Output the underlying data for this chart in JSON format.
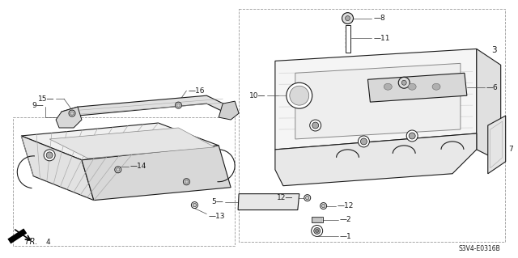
{
  "background_color": "#ffffff",
  "diagram_code": "S3V4-E0316B",
  "line_color": "#1a1a1a",
  "text_color": "#1a1a1a",
  "label_fs": 6.5,
  "lw": 0.8
}
